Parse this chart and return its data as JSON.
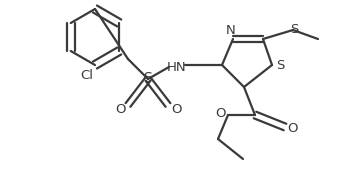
{
  "bg_color": "#ffffff",
  "line_color": "#3a3a3a",
  "figsize": [
    3.46,
    1.87
  ],
  "dpi": 100,
  "xlim": [
    0,
    346
  ],
  "ylim": [
    0,
    187
  ]
}
